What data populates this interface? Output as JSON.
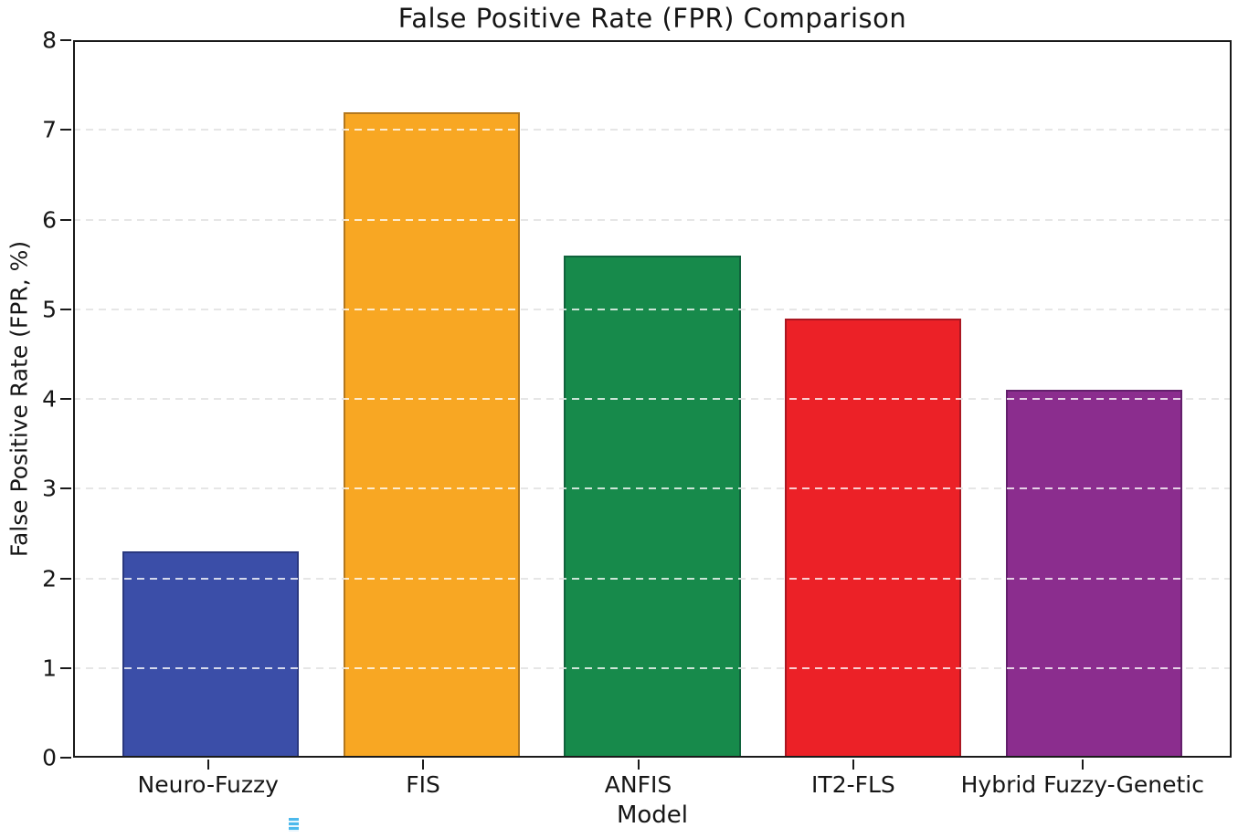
{
  "chart_data": {
    "type": "bar",
    "title": "False Positive Rate (FPR) Comparison",
    "xlabel": "Model",
    "ylabel": "False Positive Rate (FPR, %)",
    "categories": [
      "Neuro-Fuzzy",
      "FIS",
      "ANFIS",
      "IT2-FLS",
      "Hybrid Fuzzy-Genetic"
    ],
    "values": [
      2.3,
      7.2,
      5.6,
      4.9,
      4.1
    ],
    "bar_colors": [
      "#3b4ea8",
      "#f8a723",
      "#178a4b",
      "#ec2127",
      "#8b2d8e"
    ],
    "ylim": [
      0,
      8
    ],
    "yticks": [
      0,
      1,
      2,
      3,
      4,
      5,
      6,
      7,
      8
    ],
    "grid": "horizontal dashed gridlines at each integer; gray outside bars, white over bars",
    "legend": "none",
    "frame": "full box frame, black spines",
    "gridline_color": "#8f8f8f",
    "gridline_over_bar_color": "#ffffff",
    "frame_color": "#1a1a1a",
    "background_color": "#ffffff"
  },
  "decor": {
    "artifact_note": "tiny cyan striped mark below Neuro-Fuzzy label",
    "artifact_color": "#4db9ec"
  }
}
